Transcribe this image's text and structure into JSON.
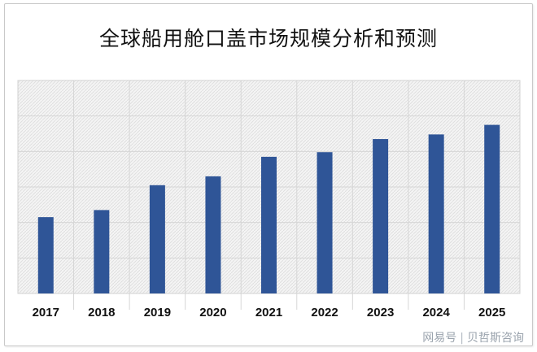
{
  "chart_data": {
    "type": "bar",
    "title": "全球船用舱口盖市场规模分析和预测",
    "xlabel": "",
    "ylabel": "",
    "categories": [
      "2017",
      "2018",
      "2019",
      "2020",
      "2021",
      "2022",
      "2023",
      "2024",
      "2025"
    ],
    "values": [
      2.15,
      2.35,
      3.05,
      3.3,
      3.85,
      3.98,
      4.35,
      4.48,
      4.75
    ],
    "ylim": [
      0,
      6
    ],
    "grid": true,
    "bar_color": "#2f5597",
    "plot_background": "hatched light gray"
  },
  "watermark": {
    "source": "网易号",
    "brand": "贝哲斯咨询"
  }
}
